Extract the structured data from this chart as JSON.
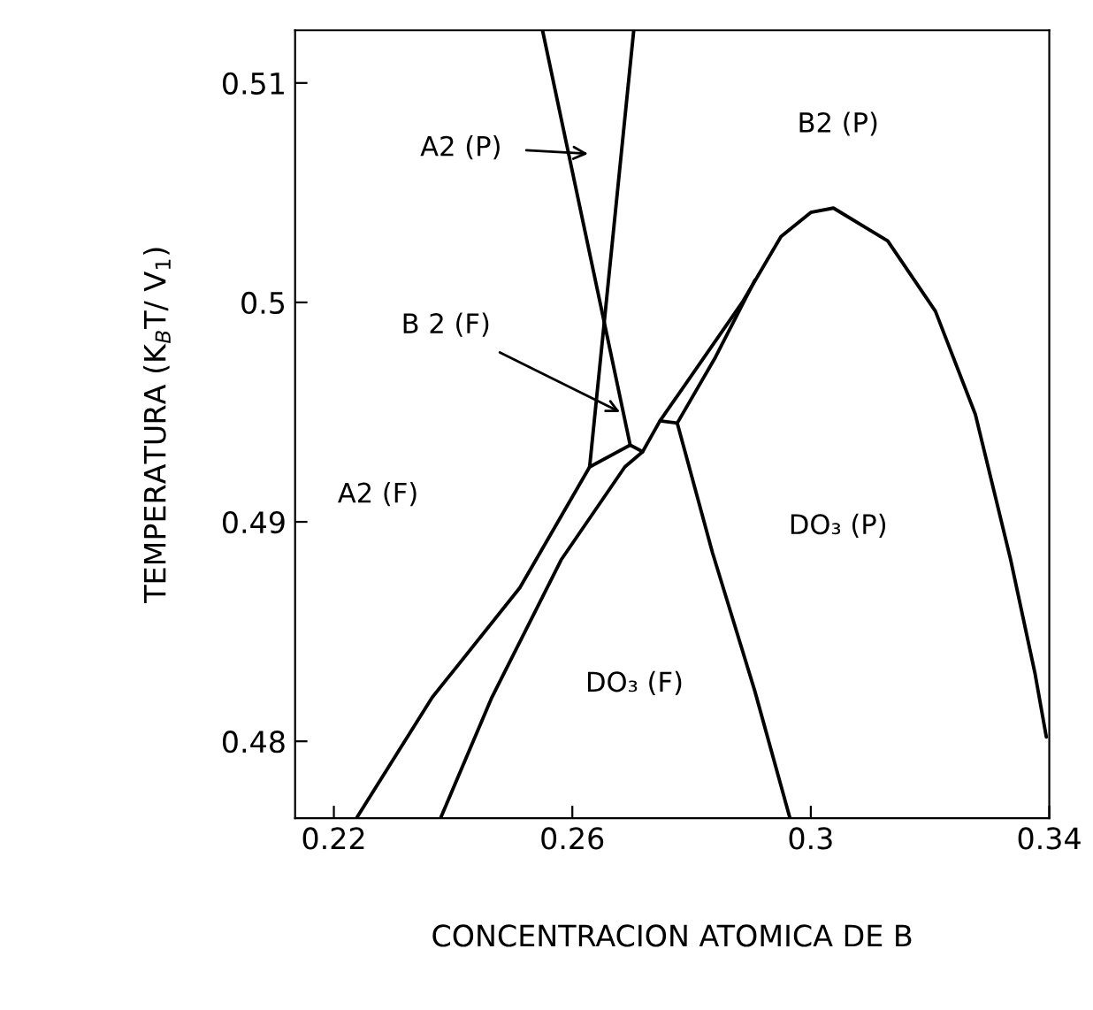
{
  "chart_data": {
    "type": "line",
    "xlabel": "CONCENTRACION ATOMICA DE B",
    "ylabel": "TEMPERATURA (K$_{B}$T/ V$_{1}$)",
    "xlim": [
      0.2135,
      0.34
    ],
    "ylim": [
      0.4765,
      0.5124
    ],
    "xticks": [
      0.22,
      0.26,
      0.3,
      0.34
    ],
    "yticks": [
      0.48,
      0.49,
      0.5,
      0.51
    ],
    "grid": false,
    "legend": false,
    "marker": "none",
    "line_style": "solid",
    "series": [
      {
        "color": "#000000",
        "x": [
          0.2238,
          0.2365,
          0.2512,
          0.2629,
          0.2703
        ],
        "values": [
          0.4765,
          0.482,
          0.487,
          0.4925,
          0.5124
        ]
      },
      {
        "color": "#000000",
        "x": [
          0.2379,
          0.2465,
          0.2582,
          0.2688,
          0.2718,
          0.2747,
          0.2885,
          0.295,
          0.3,
          0.3038,
          0.3129,
          0.3209,
          0.3276,
          0.3335,
          0.3376,
          0.3395
        ],
        "values": [
          0.4765,
          0.482,
          0.4883,
          0.4925,
          0.4932,
          0.4946,
          0.5,
          0.503,
          0.5041,
          0.5043,
          0.5028,
          0.4996,
          0.4949,
          0.4883,
          0.4831,
          0.4802
        ]
      },
      {
        "color": "#000000",
        "x": [
          0.255,
          0.2697,
          0.2718
        ],
        "values": [
          0.5124,
          0.4935,
          0.4932
        ]
      },
      {
        "color": "#000000",
        "x": [
          0.2629,
          0.2697
        ],
        "values": [
          0.4925,
          0.4935
        ]
      },
      {
        "color": "#000000",
        "x": [
          0.2747,
          0.2776
        ],
        "values": [
          0.4946,
          0.4945
        ]
      },
      {
        "color": "#000000",
        "x": [
          0.2906,
          0.284,
          0.2776,
          0.2835,
          0.2906,
          0.2965
        ],
        "values": [
          0.501,
          0.4975,
          0.4945,
          0.4886,
          0.4823,
          0.4765
        ]
      }
    ],
    "annotations": [
      "A2 (P)",
      {
        "text": "B 2 (F)",
        "x": 0.268,
        "y": 0.495
      },
      "A2 (F)",
      "B2 (P)",
      "DO₃ (P)",
      "DO₃ (F)"
    ]
  }
}
